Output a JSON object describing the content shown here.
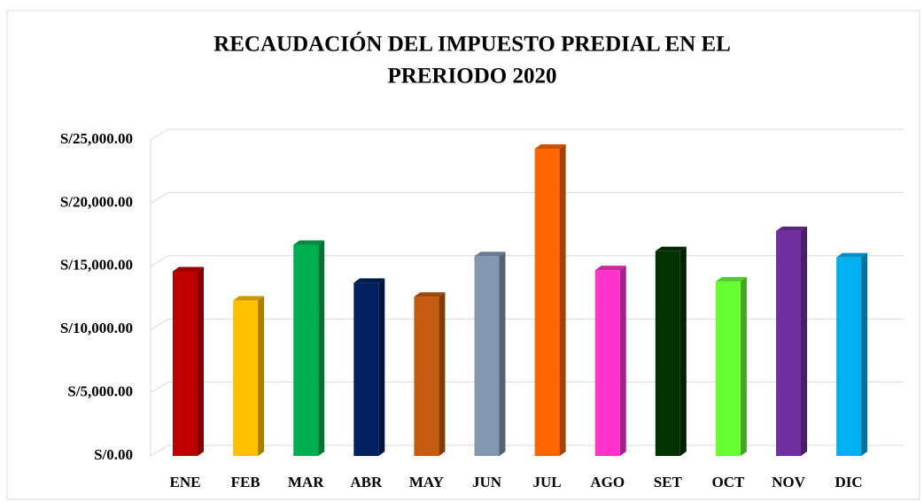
{
  "chart_data": {
    "type": "bar3d",
    "title": [
      "RECAUDACIÓN  DEL IMPUESTO PREDIAL EN EL",
      "PRERIODO 2020"
    ],
    "categories": [
      "ENE",
      "FEB",
      "MAR",
      "ABR",
      "MAY",
      "JUN",
      "JUL",
      "AGO",
      "SET",
      "OCT",
      "NOV",
      "DIC"
    ],
    "values": [
      14600,
      12300,
      16700,
      13700,
      12600,
      15800,
      24300,
      14700,
      16200,
      13800,
      17800,
      15700
    ],
    "colors": [
      "#c00000",
      "#ffc000",
      "#00b050",
      "#002060",
      "#c55a11",
      "#8497b0",
      "#ff6600",
      "#ff33cc",
      "#003300",
      "#66ff33",
      "#7030a0",
      "#00b0f0"
    ],
    "ylim": [
      0,
      25000
    ],
    "yticks": [
      {
        "value": 0,
        "label": "S/0.00"
      },
      {
        "value": 5000,
        "label": "S/5,000.00"
      },
      {
        "value": 10000,
        "label": "S/10,000.00"
      },
      {
        "value": 15000,
        "label": "S/15,000.00"
      },
      {
        "value": 20000,
        "label": "S/20,000.00"
      },
      {
        "value": 25000,
        "label": "S/25,000.00"
      }
    ],
    "grid": true
  }
}
